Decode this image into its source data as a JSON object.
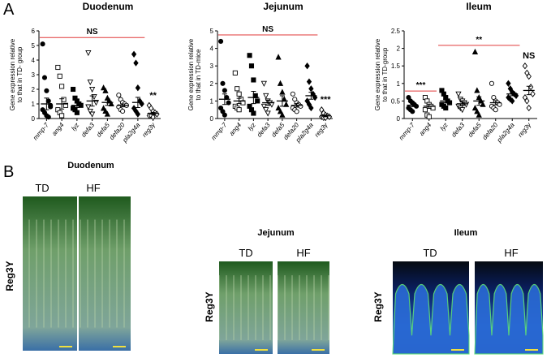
{
  "panel_a_label": "A",
  "chart_data": [
    {
      "type": "dotplot",
      "title": "Duodenum",
      "ylabel": [
        "Gene expression relative",
        "to that in TD- group"
      ],
      "categories": [
        "mmp-7",
        "ang4",
        "lyz",
        "defa3",
        "defa5",
        "defa20",
        "pla2g4a",
        "reg3γ"
      ],
      "markers": [
        "circle",
        "square",
        "square",
        "triangle-down",
        "triangle",
        "circle",
        "diamond",
        "diamond"
      ],
      "filled": [
        true,
        false,
        true,
        false,
        true,
        false,
        true,
        false
      ],
      "points": [
        [
          5.1,
          2.8,
          1.9,
          1.2,
          0.9,
          0.6,
          0.4,
          0.2,
          0.1,
          0.8
        ],
        [
          3.5,
          2.9,
          2.2,
          1.3,
          0.9,
          0.6,
          0.4,
          0.2
        ],
        [
          2.0,
          1.4,
          1.2,
          1.0,
          0.9,
          0.7,
          0.6,
          0.4
        ],
        [
          4.5,
          2.5,
          2.0,
          1.5,
          1.1,
          0.8,
          0.5,
          0.3
        ],
        [
          2.1,
          1.9,
          1.4,
          1.2,
          1.0,
          0.7,
          0.5,
          0.3
        ],
        [
          1.6,
          1.3,
          1.1,
          1.0,
          0.9,
          0.8,
          0.6,
          0.5
        ],
        [
          4.4,
          3.8,
          2.1,
          1.2,
          1.0,
          0.7,
          0.5,
          0.3
        ],
        [
          0.9,
          0.7,
          0.5,
          0.4,
          0.3,
          0.2,
          0.2,
          0.1
        ]
      ],
      "means": [
        1.0,
        1.0,
        0.9,
        1.2,
        1.1,
        0.9,
        1.1,
        0.35
      ],
      "sems": [
        0.4,
        0.35,
        0.15,
        0.35,
        0.2,
        0.1,
        0.35,
        0.07
      ],
      "ylim": [
        0,
        6
      ],
      "yticks": [
        0,
        1,
        2,
        3,
        4,
        5,
        6
      ],
      "annotations": [
        {
          "text": "NS",
          "from": 0,
          "to": 6,
          "line": true,
          "color": "#e03a3a"
        },
        {
          "text": "**",
          "from": 7,
          "to": 7,
          "line": false,
          "color": "#e03a3a"
        }
      ]
    },
    {
      "type": "dotplot",
      "title": "Jejunum",
      "ylabel": [
        "Gene expression relative",
        "to that in TD-mice"
      ],
      "categories": [
        "mmp-7",
        "ang4",
        "lyz",
        "defa3",
        "defa5",
        "defa20",
        "pla2g4a",
        "reg3γ"
      ],
      "markers": [
        "circle",
        "square",
        "square",
        "triangle-down",
        "triangle",
        "circle",
        "diamond",
        "diamond"
      ],
      "filled": [
        true,
        false,
        true,
        false,
        true,
        false,
        true,
        false
      ],
      "points": [
        [
          4.4,
          2.0,
          1.6,
          1.2,
          0.9,
          0.6,
          0.4,
          0.2
        ],
        [
          2.6,
          1.7,
          1.4,
          1.1,
          0.9,
          0.7,
          0.6,
          0.5
        ],
        [
          3.6,
          3.0,
          2.2,
          1.3,
          1.0,
          0.7,
          0.5,
          0.3
        ],
        [
          2.0,
          1.3,
          1.0,
          0.9,
          0.8,
          0.7,
          0.5,
          0.3
        ],
        [
          3.5,
          2.0,
          1.5,
          1.1,
          0.8,
          0.6,
          0.4,
          0.2
        ],
        [
          1.4,
          1.1,
          0.9,
          0.8,
          0.7,
          0.6,
          0.5,
          0.4
        ],
        [
          3.0,
          2.1,
          1.7,
          1.4,
          1.2,
          1.0,
          0.8,
          0.6
        ],
        [
          0.5,
          0.3,
          0.2,
          0.15,
          0.1,
          0.1,
          0.05,
          0.05
        ]
      ],
      "means": [
        1.1,
        1.0,
        1.2,
        0.9,
        1.0,
        0.75,
        1.3,
        0.15
      ],
      "sems": [
        0.3,
        0.15,
        0.35,
        0.15,
        0.3,
        0.1,
        0.2,
        0.05
      ],
      "ylim": [
        0,
        5
      ],
      "yticks": [
        0,
        1,
        2,
        3,
        4,
        5
      ],
      "annotations": [
        {
          "text": "NS",
          "from": 0,
          "to": 6,
          "line": true,
          "color": "#e03a3a"
        },
        {
          "text": "***",
          "from": 7,
          "to": 7,
          "line": false,
          "color": "#e03a3a"
        }
      ]
    },
    {
      "type": "dotplot",
      "title": "Ileum",
      "ylabel": [
        "Gene expression relative",
        "to that in TD-group"
      ],
      "categories": [
        "mmp-7",
        "ang4",
        "lyz",
        "defa3",
        "defa5",
        "defa20",
        "pla2g4a",
        "reg3γ"
      ],
      "markers": [
        "circle",
        "square",
        "square",
        "triangle-down",
        "triangle",
        "circle",
        "diamond",
        "diamond"
      ],
      "filled": [
        true,
        false,
        true,
        false,
        true,
        false,
        true,
        false
      ],
      "points": [
        [
          0.6,
          0.5,
          0.45,
          0.4,
          0.35,
          0.3,
          0.25,
          0.2
        ],
        [
          0.6,
          0.5,
          0.4,
          0.35,
          0.3,
          0.25,
          0.1,
          0.05
        ],
        [
          0.8,
          0.7,
          0.6,
          0.5,
          0.45,
          0.4,
          0.35,
          0.3
        ],
        [
          0.7,
          0.55,
          0.5,
          0.45,
          0.4,
          0.35,
          0.3,
          0.25
        ],
        [
          1.9,
          0.8,
          0.6,
          0.5,
          0.4,
          0.3,
          0.2,
          0.1
        ],
        [
          1.0,
          0.6,
          0.5,
          0.45,
          0.4,
          0.35,
          0.3,
          0.25
        ],
        [
          1.0,
          0.85,
          0.75,
          0.7,
          0.65,
          0.6,
          0.55,
          0.5
        ],
        [
          1.5,
          1.3,
          1.2,
          0.9,
          0.7,
          0.6,
          0.5,
          0.3
        ]
      ],
      "means": [
        0.38,
        0.35,
        0.5,
        0.42,
        0.5,
        0.45,
        0.7,
        0.8
      ],
      "sems": [
        0.04,
        0.06,
        0.05,
        0.05,
        0.12,
        0.06,
        0.05,
        0.12
      ],
      "ylim": [
        0,
        2.5
      ],
      "yticks": [
        0,
        0.5,
        1,
        1.5,
        2,
        2.5
      ],
      "annotations": [
        {
          "text": "***",
          "from": 0,
          "to": 1,
          "line": true,
          "color": "#e03a3a"
        },
        {
          "text": "**",
          "from": 2,
          "to": 6,
          "line": true,
          "color": "#e03a3a"
        },
        {
          "text": "NS",
          "from": 7,
          "to": 7,
          "line": false,
          "color": "#e03a3a"
        }
      ]
    }
  ],
  "panel_b": {
    "label": "B",
    "sections": [
      {
        "title": "Duodenum",
        "images": [
          "TD",
          "HF"
        ],
        "stain": "Reg3Y"
      },
      {
        "title": "Jejunum",
        "images": [
          "TD",
          "HF"
        ],
        "stain": "Reg3Y"
      },
      {
        "title": "Ileum",
        "images": [
          "TD",
          "HF"
        ],
        "stain": "Reg3Y"
      }
    ]
  }
}
